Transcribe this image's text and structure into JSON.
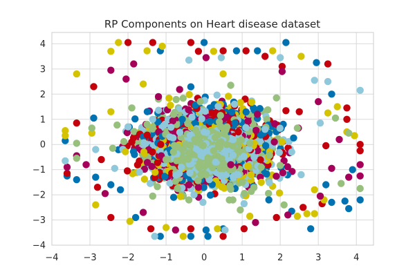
{
  "chart_data": {
    "type": "scatter",
    "title": "RP Components on Heart disease dataset",
    "xlabel": "",
    "ylabel": "",
    "xlim": [
      -4,
      4.45
    ],
    "ylim": [
      -4,
      4.45
    ],
    "xticks": [
      -4,
      -3,
      -2,
      -1,
      0,
      1,
      2,
      3,
      4
    ],
    "yticks": [
      -4,
      -3,
      -2,
      -1,
      0,
      1,
      2,
      3,
      4
    ],
    "grid": true,
    "legend": "none",
    "background": "#ffffff",
    "grid_color": "#d9d9d9",
    "marker": "filled circle",
    "point_density": "dense elliptical cloud centred near (0, 0)",
    "series": [
      {
        "color": "#0072b2",
        "points": [
          [
            0,
            4.05
          ],
          [
            2.15,
            4.05
          ],
          [
            -1.15,
            3.72
          ],
          [
            0.85,
            3.72
          ],
          [
            1.4,
            3.72
          ],
          [
            2.95,
            3.25
          ],
          [
            3.35,
            2.0
          ],
          [
            -2.9,
            1.05
          ],
          [
            -3.65,
            0.15
          ],
          [
            -3.6,
            -1.25
          ],
          [
            -3.35,
            -1.4
          ],
          [
            -2.85,
            -1.3
          ],
          [
            -2.45,
            -1.6
          ],
          [
            -2.2,
            -1.8
          ],
          [
            -1.8,
            -2.9
          ],
          [
            -1.15,
            -3.65
          ],
          [
            -0.35,
            -3.65
          ],
          [
            0.1,
            -3.65
          ],
          [
            0.5,
            -3.35
          ],
          [
            0.05,
            -3.4
          ],
          [
            2.3,
            -2.65
          ],
          [
            2.8,
            -3.35
          ],
          [
            3.35,
            -2.3
          ],
          [
            3.7,
            -2.25
          ],
          [
            4.1,
            -2.2
          ],
          [
            3.8,
            -2.55
          ],
          [
            3.2,
            -1.6
          ],
          [
            3.9,
            -1.0
          ],
          [
            -0.8,
            -2.1
          ],
          [
            1.7,
            -2.2
          ]
        ]
      },
      {
        "color": "#c4000d",
        "points": [
          [
            -2.0,
            4.05
          ],
          [
            -1.35,
            4.05
          ],
          [
            -0.35,
            4.05
          ],
          [
            -0.15,
            3.7
          ],
          [
            0.5,
            3.72
          ],
          [
            1.1,
            3.72
          ],
          [
            1.6,
            3.5
          ],
          [
            2.05,
            3.1
          ],
          [
            3.25,
            3.2
          ],
          [
            -2.9,
            2.3
          ],
          [
            -3.35,
            0.85
          ],
          [
            -3.6,
            -1.15
          ],
          [
            -2.7,
            -0.6
          ],
          [
            -2.45,
            -2.9
          ],
          [
            -1.4,
            -3.35
          ],
          [
            -0.35,
            -3.35
          ],
          [
            0.5,
            -3.65
          ],
          [
            1.05,
            -3.35
          ],
          [
            1.9,
            -2.9
          ],
          [
            2.6,
            -2.5
          ],
          [
            3.1,
            -2.35
          ],
          [
            3.75,
            1.45
          ],
          [
            3.75,
            1.0
          ],
          [
            4.1,
            0.0
          ],
          [
            4.1,
            -0.25
          ],
          [
            3.2,
            -0.05
          ],
          [
            -2.8,
            -1.7
          ],
          [
            -1.9,
            0.1
          ],
          [
            0.9,
            0.5
          ],
          [
            2.5,
            1.3
          ]
        ]
      },
      {
        "color": "#d4c300",
        "points": [
          [
            -2.25,
            4.05
          ],
          [
            -2.45,
            3.7
          ],
          [
            -1.5,
            3.72
          ],
          [
            -1.1,
            3.9
          ],
          [
            0.25,
            3.7
          ],
          [
            1.8,
            3.72
          ],
          [
            2.55,
            3.5
          ],
          [
            -3.35,
            2.8
          ],
          [
            -3.65,
            0.55
          ],
          [
            -3.65,
            0.35
          ],
          [
            -2.95,
            0.45
          ],
          [
            -2.45,
            1.3
          ],
          [
            -2.85,
            -2.4
          ],
          [
            -1.95,
            -3.05
          ],
          [
            -1.0,
            -3.3
          ],
          [
            -0.55,
            -3.65
          ],
          [
            0.35,
            -3.35
          ],
          [
            1.2,
            -2.85
          ],
          [
            2.45,
            -2.85
          ],
          [
            2.7,
            -2.75
          ],
          [
            2.9,
            -2.75
          ],
          [
            3.15,
            -2.2
          ],
          [
            3.5,
            1.5
          ],
          [
            3.25,
            1.25
          ],
          [
            3.75,
            0.5
          ],
          [
            3.95,
            0.35
          ],
          [
            2.9,
            -1.8
          ],
          [
            0.5,
            2.8
          ],
          [
            -1.6,
            2.4
          ],
          [
            1.5,
            -1.5
          ]
        ]
      },
      {
        "color": "#a4005a",
        "points": [
          [
            -2.45,
            2.95
          ],
          [
            -1.85,
            3.2
          ],
          [
            0.05,
            3.45
          ],
          [
            -3.35,
            -0.45
          ],
          [
            -3.1,
            -0.8
          ],
          [
            -3.6,
            -0.9
          ],
          [
            -2.6,
            -1.95
          ],
          [
            -1.6,
            -2.7
          ],
          [
            -0.75,
            -3.4
          ],
          [
            1.35,
            -3.1
          ],
          [
            2.2,
            -2.8
          ],
          [
            3.05,
            -2.05
          ],
          [
            3.35,
            -0.95
          ],
          [
            4.1,
            -0.8
          ],
          [
            4.1,
            -1.25
          ],
          [
            3.8,
            -1.3
          ],
          [
            3.55,
            0.2
          ],
          [
            3.0,
            1.7
          ],
          [
            2.05,
            2.9
          ],
          [
            -2.05,
            2.6
          ],
          [
            -1.2,
            1.9
          ],
          [
            1.4,
            1.2
          ],
          [
            -0.4,
            -1.6
          ],
          [
            0.7,
            -0.8
          ]
        ]
      },
      {
        "color": "#8ec8da",
        "points": [
          [
            -0.4,
            3.35
          ],
          [
            0.45,
            3.45
          ],
          [
            2.0,
            3.45
          ],
          [
            2.9,
            2.55
          ],
          [
            4.1,
            2.15
          ],
          [
            3.25,
            2.5
          ],
          [
            -3.65,
            -0.65
          ],
          [
            -2.85,
            -0.2
          ],
          [
            -2.35,
            -0.95
          ],
          [
            -1.3,
            -3.65
          ],
          [
            0.55,
            -3.4
          ],
          [
            1.05,
            -2.35
          ],
          [
            2.55,
            -1.2
          ],
          [
            3.05,
            0.85
          ],
          [
            -1.35,
            1.0
          ],
          [
            -0.9,
            0.3
          ],
          [
            0.0,
            0.5
          ],
          [
            0.3,
            -0.7
          ],
          [
            0.8,
            1.6
          ],
          [
            -0.6,
            -0.9
          ],
          [
            1.6,
            0.6
          ],
          [
            2.3,
            -0.3
          ],
          [
            -2.0,
            0.7
          ],
          [
            -1.7,
            -1.1
          ]
        ]
      },
      {
        "color": "#96c07c",
        "points": [
          [
            -3.35,
            0.05
          ],
          [
            -3.35,
            -0.55
          ],
          [
            -2.95,
            0.65
          ],
          [
            -1.9,
            1.45
          ],
          [
            -1.5,
            0.8
          ],
          [
            -0.8,
            1.2
          ],
          [
            -0.25,
            0.2
          ],
          [
            0.25,
            -0.25
          ],
          [
            0.6,
            0.7
          ],
          [
            1.2,
            0.05
          ],
          [
            0.05,
            -1.2
          ],
          [
            -0.7,
            -1.75
          ],
          [
            1.9,
            1.85
          ],
          [
            2.45,
            0.65
          ],
          [
            3.45,
            1.05
          ],
          [
            3.8,
            0.45
          ],
          [
            4.1,
            -1.75
          ],
          [
            3.6,
            -1.55
          ],
          [
            2.1,
            -2.4
          ],
          [
            0.95,
            -2.6
          ],
          [
            -0.4,
            -2.2
          ],
          [
            -1.35,
            -2.05
          ],
          [
            -2.4,
            -0.15
          ],
          [
            0.7,
            2.35
          ],
          [
            -0.1,
            1.7
          ],
          [
            1.5,
            -0.9
          ],
          [
            -0.3,
            -0.4
          ],
          [
            0.4,
            0.9
          ],
          [
            -1.0,
            -0.6
          ],
          [
            1.0,
            -1.5
          ]
        ]
      }
    ]
  }
}
